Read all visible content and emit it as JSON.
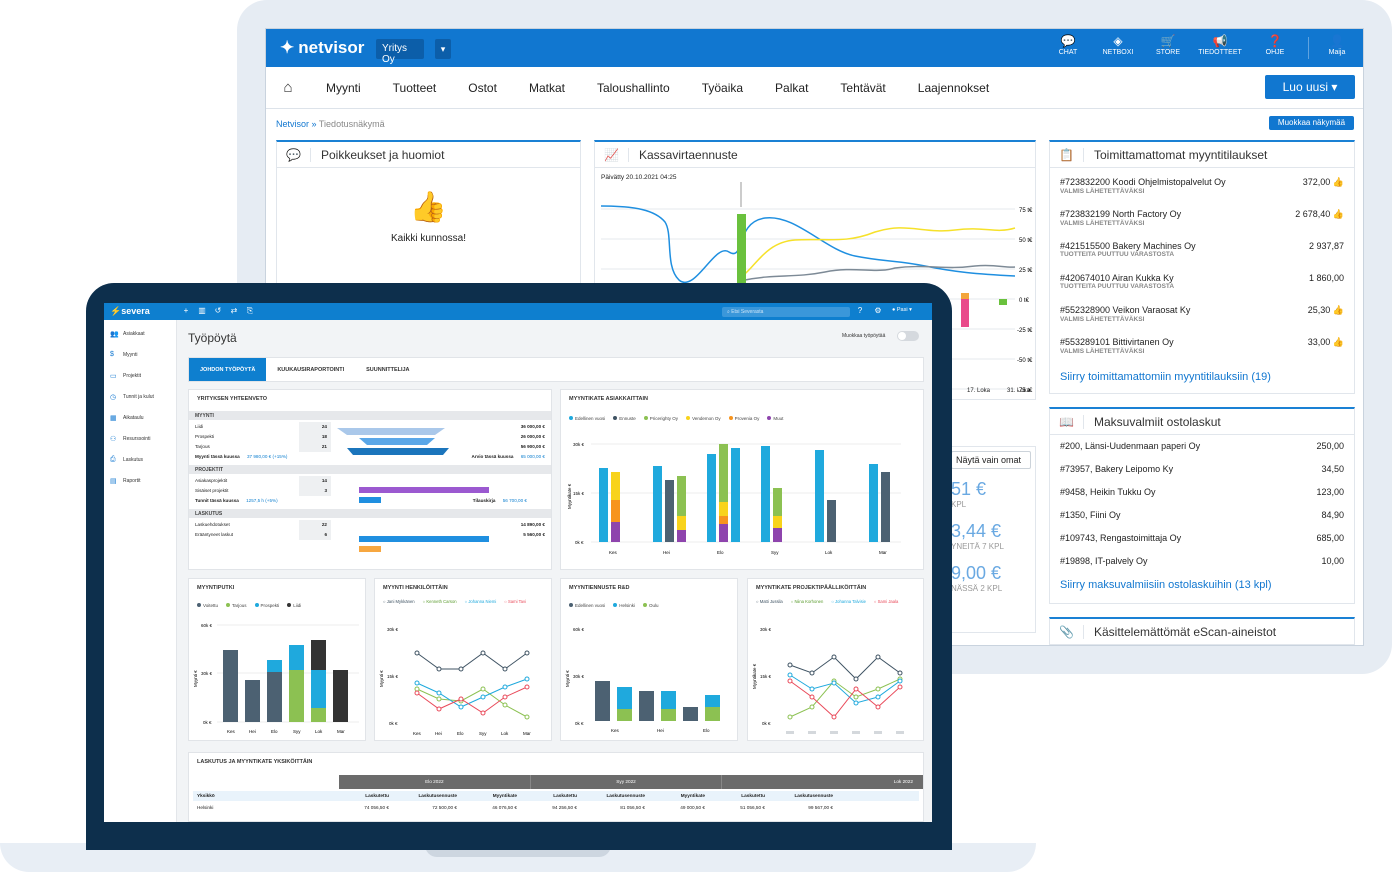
{
  "netvisor": {
    "logo": "netvisor",
    "company": "Yritys Oy",
    "top_icons": [
      {
        "label": "CHAT",
        "icon": "chat-icon"
      },
      {
        "label": "NETBOXI",
        "icon": "cube-icon"
      },
      {
        "label": "STORE",
        "icon": "cart-icon"
      },
      {
        "label": "TIEDOTTEET",
        "icon": "megaphone-icon"
      },
      {
        "label": "OHJE",
        "icon": "help-icon"
      },
      {
        "label": "Maija",
        "icon": "user-icon"
      }
    ],
    "nav": [
      "Myynti",
      "Tuotteet",
      "Ostot",
      "Matkat",
      "Taloushallinto",
      "Työaika",
      "Palkat",
      "Tehtävät",
      "Laajennokset"
    ],
    "new_button": "Luo uusi",
    "breadcrumb_root": "Netvisor",
    "breadcrumb_sep": "»",
    "breadcrumb_current": "Tiedotusnäkymä",
    "edit_view": "Muokkaa näkymää",
    "exceptions": {
      "title": "Poikkeukset ja huomiot",
      "message": "Kaikki kunnossa!"
    },
    "cashflow": {
      "title": "Kassavirtaennuste",
      "updated": "Päivätty 20.10.2021 04:25",
      "y_ticks": [
        "75 t€",
        "50 t€",
        "25 t€",
        "0 t€",
        "-25 t€",
        "-50 t€",
        "-75 t€"
      ],
      "x_ticks": [
        "17. Loka",
        "31. Loka"
      ],
      "show_own": "Näytä vain omat",
      "kpi": [
        {
          "value": "51 €",
          "sub": "KPL"
        },
        {
          "value": "3,44 €",
          "sub": "YNEITÄ 7 KPL"
        },
        {
          "value": "9,00 €",
          "sub": "NÄSSÄ 2 KPL"
        }
      ]
    },
    "undelivered": {
      "title": "Toimittamattomat myyntitilaukset",
      "rows": [
        {
          "name": "#723832200 Koodi Ohjelmistopalvelut Oy",
          "status": "VALMIS LÄHETETTÄVÄKSI",
          "amount": "372,00",
          "ok": true
        },
        {
          "name": "#723832199 North Factory Oy",
          "status": "VALMIS LÄHETETTÄVÄKSI",
          "amount": "2 678,40",
          "ok": true
        },
        {
          "name": "#421515500 Bakery Machines Oy",
          "status": "TUOTTEITA PUUTTUU VARASTOSTA",
          "amount": "2 937,87",
          "ok": false
        },
        {
          "name": "#420674010 Airan Kukka Ky",
          "status": "TUOTTEITA PUUTTUU VARASTOSTA",
          "amount": "1 860,00",
          "ok": false
        },
        {
          "name": "#552328900 Veikon Varaosat Ky",
          "status": "VALMIS LÄHETETTÄVÄKSI",
          "amount": "25,30",
          "ok": true
        },
        {
          "name": "#553289101 Bittivirtanen Oy",
          "status": "VALMIS LÄHETETTÄVÄKSI",
          "amount": "33,00",
          "ok": true
        }
      ],
      "link": "Siirry toimittamattomiin myyntitilauksiin (19)"
    },
    "payable": {
      "title": "Maksuvalmiit ostolaskut",
      "rows": [
        {
          "name": "#200, Länsi-Uudenmaan paperi Oy",
          "amount": "250,00"
        },
        {
          "name": "#73957, Bakery Leipomo Ky",
          "amount": "34,50"
        },
        {
          "name": "#9458, Heikin Tukku Oy",
          "amount": "123,00"
        },
        {
          "name": "#1350, Fiini Oy",
          "amount": "84,90"
        },
        {
          "name": "#109743, Rengastoimittaja Oy",
          "amount": "685,00"
        },
        {
          "name": "#19898, IT-palvely Oy",
          "amount": "10,00"
        }
      ],
      "link": "Siirry maksuvalmiisiin ostolaskuihin (13 kpl)"
    },
    "escan": {
      "title": "Käsittelemättömät eScan-aineistot"
    }
  },
  "severa": {
    "logo": "severa",
    "search_placeholder": "Etsi Severasta",
    "user": "Pasi",
    "sidebar": [
      "Asiakkaat",
      "Myynti",
      "Projektit",
      "Tunnit ja kulut",
      "Aikataulu",
      "Resurssointi",
      "Laskutus",
      "Raportit"
    ],
    "title": "Työpöytä",
    "edit_label": "Muokkaa työpöytää",
    "tabs": [
      "JOHDON TYÖPÖYTÄ",
      "KUUKAUSIRAPORTOINTI",
      "SUUNNITTELIJA"
    ],
    "summary": {
      "title": "YRITYKSEN YHTEENVETO",
      "sales_h": "MYYNTI",
      "sales": [
        {
          "label": "Liidi",
          "count": "24",
          "value": "36 000,00 €"
        },
        {
          "label": "Prospekti",
          "count": "18",
          "value": "26 000,00 €"
        },
        {
          "label": "Tarjous",
          "count": "21",
          "value": "56 900,00 €"
        }
      ],
      "sales_total_label": "Myynti tässä kuussa",
      "sales_total": "37 980,00 € (+15%)",
      "estimate_label": "Arvio tässä kuussa",
      "estimate": "65 000,00 €",
      "projects_h": "PROJEKTIT",
      "projects": [
        {
          "label": "Asiakasprojektit",
          "count": "14"
        },
        {
          "label": "Sisäiset projektit",
          "count": "3"
        }
      ],
      "hours_label": "Tunnit tässä kuussa",
      "hours": "1257,5 h (+5%)",
      "order_label": "Tilauskirja",
      "order": "56 700,00 €",
      "billing_h": "LASKUTUS",
      "billing": [
        {
          "label": "Laskuehdotukset",
          "count": "22",
          "value": "14 890,00 €"
        },
        {
          "label": "Erääntyneet laskut",
          "count": "6",
          "value": "5 560,00 €"
        }
      ]
    },
    "margin_by_customer": {
      "title": "MYYNTIKATE ASIAKKAITTAIN",
      "legend": [
        "Edellinen vuosi",
        "Ennuste",
        "Pricerighty Oy",
        "Vendemon Oy",
        "Provenia Oy",
        "Muut"
      ],
      "ylabel": "Myyntikate €",
      "yticks": [
        "30k €",
        "15k €",
        "0k €"
      ],
      "months": [
        "Kes",
        "Hei",
        "Elo",
        "Syy",
        "Lok",
        "Mar"
      ]
    },
    "pipeline": {
      "title": "MYYNTIPUTKI",
      "legend": [
        "Voitettu",
        "Tarjous",
        "Prospekti",
        "Liidi"
      ],
      "ylabel": "Myynti €",
      "yticks": [
        "60k €",
        "30k €",
        "0k €"
      ],
      "months": [
        "Kes",
        "Hei",
        "Elo",
        "Syy",
        "Lok",
        "Mar"
      ]
    },
    "by_person": {
      "title": "MYYNTI HENKILÖITTÄIN",
      "legend": [
        "Jani Mykkänen",
        "Kenneth Carson",
        "Johanna Niemi",
        "Sami Tavi"
      ],
      "ylabel": "Myynti €",
      "yticks": [
        "30k €",
        "15k €",
        "0k €"
      ],
      "months": [
        "Kes",
        "Hei",
        "Elo",
        "Syy",
        "Lok",
        "Mar"
      ]
    },
    "forecast": {
      "title": "MYYNTIENNUSTE R&D",
      "legend": [
        "Edellinen vuosi",
        "Helsinki",
        "Oulu"
      ],
      "ylabel": "Myynti €",
      "yticks": [
        "60k €",
        "30k €",
        "0k €"
      ],
      "months": [
        "Kes",
        "Hei",
        "Elo"
      ]
    },
    "by_pm": {
      "title": "MYYNTIKATE PROJEKTIPÄÄLLIKÖITTÄIN",
      "legend": [
        "Matti Jussila",
        "Niina Korhonen",
        "Johanna Talvisie",
        "Sami Jaala"
      ],
      "ylabel": "Myyntikate €",
      "yticks": [
        "30k €",
        "15k €",
        "0k €"
      ]
    },
    "table": {
      "title": "LASKUTUS JA MYYNTIKATE YKSIKÖITTÄIN",
      "months": [
        "Elo 2022",
        "Syy 2022",
        "Lok 2022"
      ],
      "headers": [
        "Yksikkö",
        "Laskutettu",
        "Laskutusennuste",
        "Myyntikate",
        "Laskutettu",
        "Laskutusennuste",
        "Myyntikate",
        "Laskutettu",
        "Laskutusennuste"
      ],
      "row": [
        "Helsinki",
        "74 056,50 €",
        "72 500,00 €",
        "46 076,50 €",
        "94 256,50 €",
        "81 056,50 €",
        "49 000,50 €",
        "51 056,50 €",
        "99 567,00 €"
      ]
    }
  }
}
